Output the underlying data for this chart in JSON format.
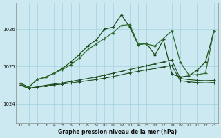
{
  "title": "Graphe pression niveau de la mer (hPa)",
  "background_color": "#cce8f0",
  "grid_color": "#99ccdd",
  "line_color_dark": "#1a4a1a",
  "line_color_mid": "#2d6b2d",
  "x_labels": [
    "0",
    "1",
    "2",
    "3",
    "4",
    "5",
    "6",
    "7",
    "8",
    "9",
    "10",
    "11",
    "12",
    "13",
    "14",
    "15",
    "16",
    "17",
    "18",
    "19",
    "20",
    "21",
    "22",
    "23"
  ],
  "ylim": [
    1023.5,
    1026.7
  ],
  "yticks": [
    1024,
    1025,
    1026
  ],
  "series_jagged": [
    1024.55,
    1024.45,
    1024.65,
    1024.72,
    1024.82,
    1024.95,
    1025.12,
    1025.32,
    1025.55,
    1025.7,
    1026.0,
    1026.05,
    1026.38,
    1026.05,
    1025.58,
    1025.62,
    1025.3,
    1025.72,
    1024.8,
    1024.72,
    1024.75,
    1024.9,
    1025.12,
    1025.95
  ],
  "series_smooth": [
    1024.55,
    1024.45,
    1024.65,
    1024.72,
    1024.82,
    1024.92,
    1025.05,
    1025.22,
    1025.45,
    1025.6,
    1025.75,
    1025.9,
    1026.1,
    1026.12,
    1025.6,
    1025.6,
    1025.55,
    1025.75,
    1025.95,
    1025.12,
    1024.78,
    1024.78,
    1024.82,
    1025.95
  ],
  "series_flat1": [
    1024.5,
    1024.42,
    1024.46,
    1024.5,
    1024.53,
    1024.56,
    1024.6,
    1024.64,
    1024.68,
    1024.72,
    1024.77,
    1024.82,
    1024.87,
    1024.92,
    1024.97,
    1025.02,
    1025.07,
    1025.12,
    1025.17,
    1024.68,
    1024.65,
    1024.63,
    1024.62,
    1024.63
  ],
  "series_flat2": [
    1024.5,
    1024.42,
    1024.45,
    1024.48,
    1024.51,
    1024.53,
    1024.56,
    1024.59,
    1024.62,
    1024.65,
    1024.69,
    1024.73,
    1024.78,
    1024.83,
    1024.87,
    1024.91,
    1024.95,
    1024.99,
    1025.03,
    1024.62,
    1024.59,
    1024.57,
    1024.56,
    1024.57
  ]
}
